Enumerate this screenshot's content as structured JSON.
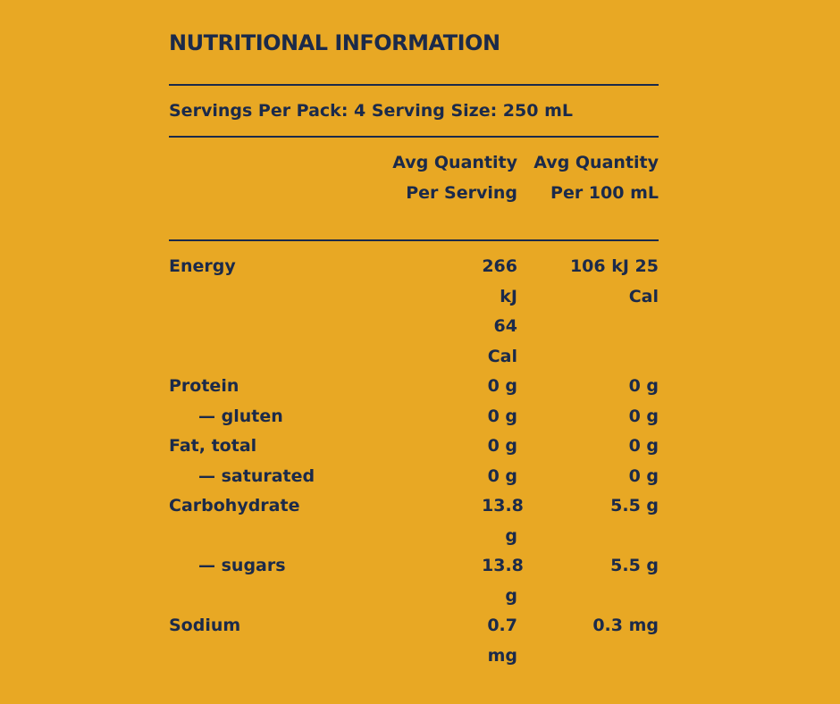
{
  "title": "NUTRITIONAL INFORMATION",
  "servings_line": "Servings Per Pack: 4 Serving Size: 250 mL",
  "columns": {
    "per_serving": "Avg Quantity Per Serving",
    "per_100": "Avg Quantity Per 100 mL"
  },
  "rows": [
    {
      "name": "Energy",
      "per_serving": "266 kJ 64 Cal",
      "per_100": "106 kJ 25 Cal"
    },
    {
      "name": "Protein",
      "per_serving": "0 g",
      "per_100": "0 g"
    },
    {
      "name": "— gluten",
      "per_serving": "0 g",
      "per_100": "0 g"
    },
    {
      "name": "Fat, total",
      "per_serving": "0 g",
      "per_100": "0 g"
    },
    {
      "name": "— saturated",
      "per_serving": "0 g",
      "per_100": "0 g"
    },
    {
      "name": "Carbohydrate",
      "per_serving": "13.8 g",
      "per_100": "5.5 g"
    },
    {
      "name": "— sugars",
      "per_serving": "13.8 g",
      "per_100": "5.5 g"
    },
    {
      "name": "Sodium",
      "per_serving": "0.7 mg",
      "per_100": "0.3 mg"
    }
  ],
  "colors": {
    "background": "#e8a824",
    "text": "#1b2a4a"
  }
}
